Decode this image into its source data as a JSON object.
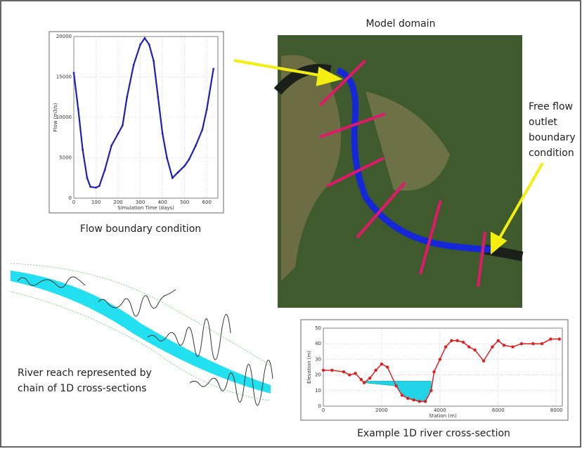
{
  "labels": {
    "model_domain": "Model domain",
    "flow_caption": "Flow boundary condition",
    "outlet": [
      "Free flow",
      "outlet",
      "boundary",
      "condition"
    ],
    "reach": [
      "River reach represented by",
      "chain of 1D cross-sections"
    ],
    "xs_caption": "Example 1D river cross-section"
  },
  "chart_data": [
    {
      "type": "line",
      "x_label": "Simulation Time (days)",
      "y_label": "Flow (m3/s)",
      "color": "#1f1fb8",
      "x": [
        0,
        20,
        40,
        60,
        75,
        100,
        115,
        140,
        170,
        200,
        220,
        240,
        270,
        300,
        320,
        340,
        360,
        380,
        400,
        420,
        445,
        470,
        500,
        520,
        550,
        580,
        600,
        630
      ],
      "values": [
        15500,
        11000,
        6000,
        2500,
        1400,
        1300,
        1500,
        3500,
        6500,
        8000,
        9000,
        12500,
        16500,
        19000,
        19800,
        19000,
        17000,
        12500,
        8000,
        5000,
        2500,
        3200,
        4000,
        4800,
        6500,
        8500,
        11000,
        16000
      ],
      "xlim": [
        0,
        650
      ],
      "xticks": [
        0,
        100,
        200,
        300,
        400,
        500,
        600
      ],
      "ylim": [
        0,
        20000
      ],
      "yticks": [
        0,
        5000,
        10000,
        15000,
        20000
      ],
      "grid": true
    },
    {
      "type": "line",
      "x_label": "Station (m)",
      "y_label": "Elevation (m)",
      "color": "#e02020",
      "water_level": 16,
      "water_color": "#22d3e8",
      "x": [
        0,
        300,
        700,
        900,
        1100,
        1300,
        1400,
        1600,
        1800,
        2000,
        2200,
        2500,
        2700,
        2900,
        3100,
        3300,
        3500,
        3700,
        3800,
        4000,
        4200,
        4400,
        4600,
        4800,
        5000,
        5200,
        5500,
        5800,
        6000,
        6200,
        6500,
        6800,
        7200,
        7500,
        7800,
        8100
      ],
      "values": [
        23,
        23,
        22,
        20,
        21,
        17,
        15,
        18,
        23,
        27,
        25,
        13,
        7,
        5,
        4,
        3,
        3,
        10,
        22,
        30,
        38,
        42,
        42,
        41,
        38,
        36,
        29,
        38,
        42,
        39,
        38,
        40,
        40,
        40,
        43,
        43
      ],
      "xlim": [
        0,
        8200
      ],
      "xticks": [
        0,
        2000,
        4000,
        6000,
        8000
      ],
      "ylim": [
        0,
        50
      ],
      "yticks": [
        0,
        10,
        20,
        30,
        40,
        50
      ],
      "grid": true
    }
  ]
}
